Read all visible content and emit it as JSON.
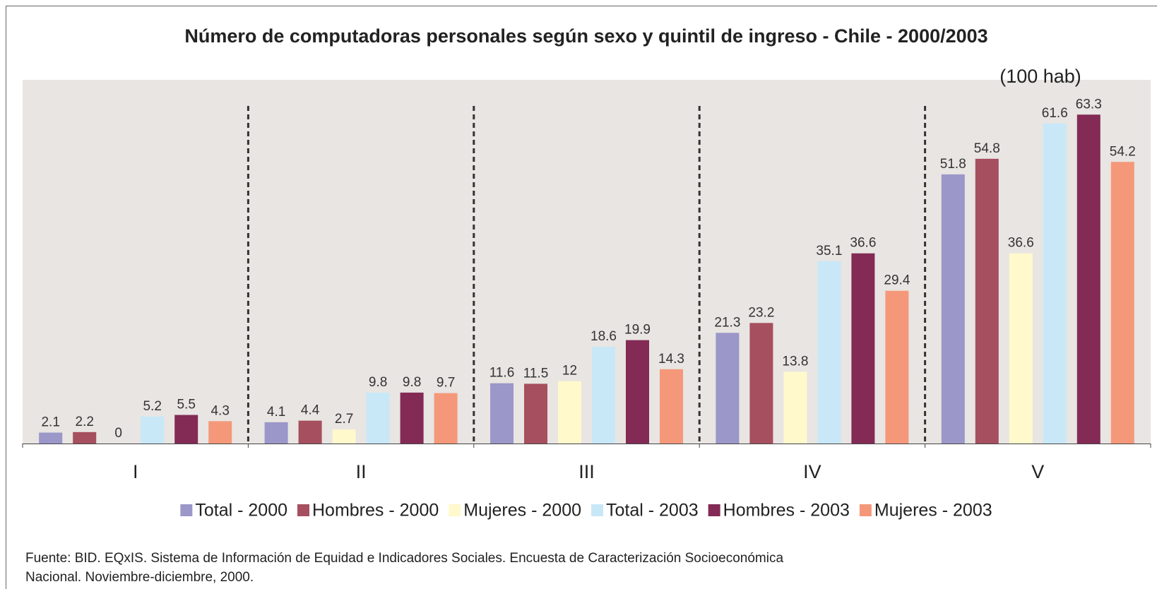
{
  "chart_data": {
    "type": "bar",
    "title": "Número de computadoras personales según sexo y quintil de ingreso - Chile - 2000/2003",
    "annotation": "(100 hab)",
    "categories": [
      "I",
      "II",
      "III",
      "IV",
      "V"
    ],
    "series": [
      {
        "name": "Total - 2000",
        "color": "#9b97c9",
        "values": [
          2.1,
          4.1,
          11.6,
          21.3,
          51.8
        ]
      },
      {
        "name": "Hombres - 2000",
        "color": "#a64f5e",
        "values": [
          2.2,
          4.4,
          11.5,
          23.2,
          54.8
        ]
      },
      {
        "name": "Mujeres - 2000",
        "color": "#fff9cc",
        "values": [
          0,
          2.7,
          12,
          13.8,
          36.6
        ]
      },
      {
        "name": "Total - 2003",
        "color": "#c8e8f8",
        "values": [
          5.2,
          9.8,
          18.6,
          35.1,
          61.6
        ]
      },
      {
        "name": "Hombres - 2003",
        "color": "#832a55",
        "values": [
          5.5,
          9.8,
          19.9,
          36.6,
          63.3
        ]
      },
      {
        "name": "Mujeres - 2003",
        "color": "#f5987a",
        "values": [
          4.3,
          9.7,
          14.3,
          29.4,
          54.2
        ]
      }
    ],
    "ylim": [
      0,
      70
    ],
    "footnote": [
      "Fuente: BID. EQxIS. Sistema de Información de Equidad e Indicadores Sociales. Encuesta de Caracterización Socioeconómica",
      "Nacional. Noviembre-diciembre, 2000."
    ]
  }
}
